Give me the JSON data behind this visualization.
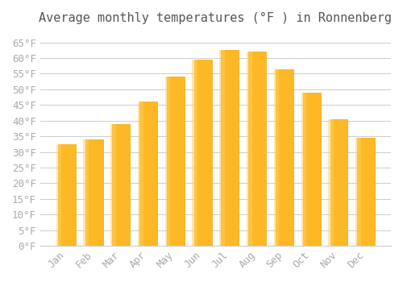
{
  "title": "Average monthly temperatures (°F ) in Ronnenberg",
  "months": [
    "Jan",
    "Feb",
    "Mar",
    "Apr",
    "May",
    "Jun",
    "Jul",
    "Aug",
    "Sep",
    "Oct",
    "Nov",
    "Dec"
  ],
  "values": [
    32.5,
    34.0,
    39.0,
    46.0,
    54.0,
    59.5,
    62.5,
    62.0,
    56.5,
    49.0,
    40.5,
    34.5
  ],
  "bar_color": "#FDB825",
  "bar_edge_color": "#F5A800",
  "background_color": "#FFFFFF",
  "grid_color": "#CCCCCC",
  "tick_label_color": "#AAAAAA",
  "title_color": "#555555",
  "ylim": [
    0,
    68
  ],
  "yticks": [
    0,
    5,
    10,
    15,
    20,
    25,
    30,
    35,
    40,
    45,
    50,
    55,
    60,
    65
  ],
  "title_fontsize": 11,
  "tick_fontsize": 9
}
